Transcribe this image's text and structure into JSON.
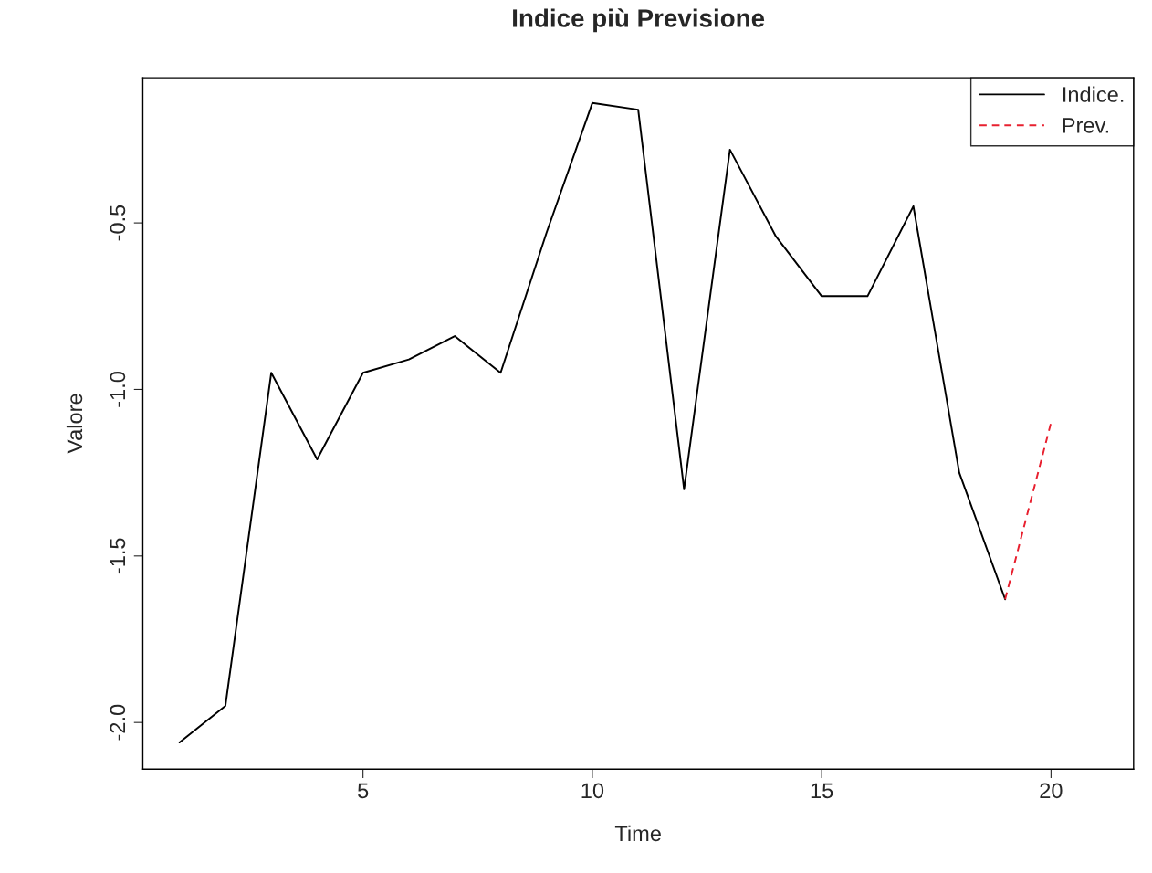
{
  "chart_data": {
    "type": "line",
    "title": "Indice più Previsione",
    "xlabel": "Time",
    "ylabel": "Valore",
    "xlim": [
      0.2,
      21.8
    ],
    "ylim": [
      -2.14,
      -0.064
    ],
    "xticks": [
      5,
      10,
      15,
      20
    ],
    "yticks": [
      {
        "value": -2.0,
        "label": "-2.0"
      },
      {
        "value": -1.5,
        "label": "-1.5"
      },
      {
        "value": -1.0,
        "label": "-1.0"
      },
      {
        "value": -0.5,
        "label": "-0.5"
      }
    ],
    "series": [
      {
        "name": "Indice.",
        "color": "#000000",
        "line_style": "solid",
        "x": [
          1,
          2,
          3,
          4,
          5,
          6,
          7,
          8,
          9,
          10,
          11,
          12,
          13,
          14,
          15,
          16,
          17,
          18,
          19
        ],
        "values": [
          -2.06,
          -1.95,
          -0.95,
          -1.21,
          -0.95,
          -0.91,
          -0.84,
          -0.95,
          -0.53,
          -0.14,
          -0.16,
          -1.3,
          -0.28,
          -0.54,
          -0.72,
          -0.72,
          -0.45,
          -1.25,
          -1.63
        ]
      },
      {
        "name": "Prev.",
        "color": "#e8202f",
        "line_style": "dashed",
        "x": [
          19,
          20
        ],
        "values": [
          -1.63,
          -1.1
        ]
      }
    ],
    "legend": "top right",
    "grid": false
  }
}
